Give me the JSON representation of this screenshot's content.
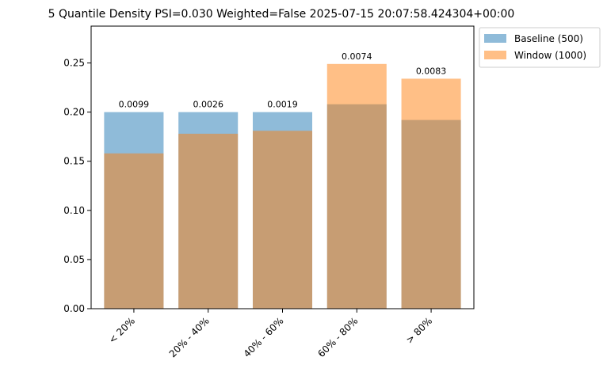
{
  "chart_data": {
    "type": "bar",
    "title": "5 Quantile Density PSI=0.030 Weighted=False 2025-07-15 20:07:58.424304+00:00",
    "xlabel": "",
    "ylabel": "",
    "categories": [
      "< 20%",
      "20% - 40%",
      "40% - 60%",
      "60% - 80%",
      "> 80%"
    ],
    "series": [
      {
        "name": "Baseline (500)",
        "color": "#1f77b4",
        "alpha": 0.5,
        "values": [
          0.2,
          0.2,
          0.2,
          0.208,
          0.192
        ]
      },
      {
        "name": "Window (1000)",
        "color": "#ff7f0e",
        "alpha": 0.5,
        "values": [
          0.158,
          0.178,
          0.181,
          0.249,
          0.234
        ]
      }
    ],
    "bar_labels": [
      "0.0099",
      "0.0026",
      "0.0019",
      "0.0074",
      "0.0083"
    ],
    "ylim": [
      0,
      0.2875
    ],
    "yticks": [
      "0.00",
      "0.05",
      "0.10",
      "0.15",
      "0.20",
      "0.25"
    ],
    "legend_position": "outside-top-right",
    "grid": false
  }
}
